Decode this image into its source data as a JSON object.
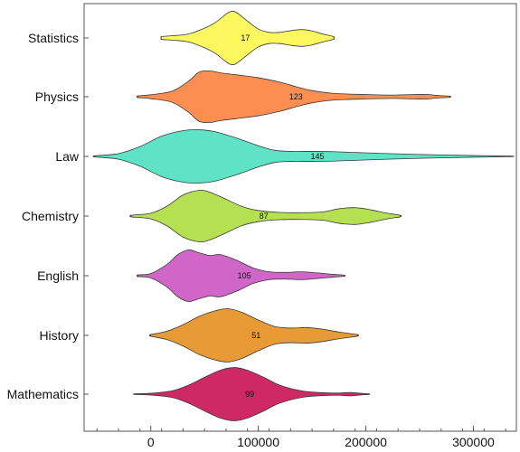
{
  "chart_data": {
    "type": "violin",
    "title": "",
    "xlabel": "",
    "ylabel": "",
    "xlim": [
      -62000,
      340000
    ],
    "x_ticks": [
      {
        "value": 0,
        "label": "0"
      },
      {
        "value": 100000,
        "label": "100000"
      },
      {
        "value": 200000,
        "label": "200000"
      },
      {
        "value": 300000,
        "label": "300000"
      }
    ],
    "grid": false,
    "categories": [
      "Statistics",
      "Physics",
      "Law",
      "Chemistry",
      "English",
      "History",
      "Mathematics"
    ],
    "series": [
      {
        "category": "Statistics",
        "count_label": "17",
        "color": "#fbf85f",
        "range": [
          10000,
          170000
        ],
        "label_x": 88000,
        "density": [
          [
            10000,
            0.05
          ],
          [
            20000,
            0.08
          ],
          [
            35000,
            0.14
          ],
          [
            50000,
            0.35
          ],
          [
            60000,
            0.55
          ],
          [
            70000,
            0.85
          ],
          [
            75000,
            0.95
          ],
          [
            80000,
            0.9
          ],
          [
            90000,
            0.6
          ],
          [
            100000,
            0.32
          ],
          [
            110000,
            0.2
          ],
          [
            120000,
            0.2
          ],
          [
            130000,
            0.26
          ],
          [
            140000,
            0.3
          ],
          [
            150000,
            0.25
          ],
          [
            160000,
            0.14
          ],
          [
            170000,
            0.05
          ]
        ]
      },
      {
        "category": "Physics",
        "count_label": "123",
        "color": "#fc8e52",
        "range": [
          -12000,
          278000
        ],
        "label_x": 135000,
        "density": [
          [
            -12000,
            0.03
          ],
          [
            0,
            0.07
          ],
          [
            20000,
            0.2
          ],
          [
            35000,
            0.55
          ],
          [
            45000,
            0.88
          ],
          [
            55000,
            0.92
          ],
          [
            65000,
            0.85
          ],
          [
            80000,
            0.78
          ],
          [
            100000,
            0.68
          ],
          [
            120000,
            0.52
          ],
          [
            135000,
            0.36
          ],
          [
            150000,
            0.22
          ],
          [
            170000,
            0.12
          ],
          [
            200000,
            0.08
          ],
          [
            225000,
            0.06
          ],
          [
            245000,
            0.08
          ],
          [
            258000,
            0.08
          ],
          [
            265000,
            0.05
          ],
          [
            278000,
            0.02
          ]
        ]
      },
      {
        "category": "Law",
        "count_label": "145",
        "color": "#5fe3c6",
        "range": [
          -52000,
          335000
        ],
        "label_x": 155000,
        "density": [
          [
            -52000,
            0.02
          ],
          [
            -30000,
            0.1
          ],
          [
            -10000,
            0.35
          ],
          [
            10000,
            0.72
          ],
          [
            30000,
            0.92
          ],
          [
            45000,
            0.95
          ],
          [
            60000,
            0.88
          ],
          [
            80000,
            0.65
          ],
          [
            100000,
            0.38
          ],
          [
            115000,
            0.22
          ],
          [
            130000,
            0.18
          ],
          [
            150000,
            0.18
          ],
          [
            170000,
            0.17
          ],
          [
            190000,
            0.14
          ],
          [
            220000,
            0.1
          ],
          [
            260000,
            0.06
          ],
          [
            300000,
            0.03
          ],
          [
            335000,
            0.01
          ]
        ]
      },
      {
        "category": "Chemistry",
        "count_label": "87",
        "color": "#b5e052",
        "range": [
          -18000,
          232000
        ],
        "label_x": 105000,
        "density": [
          [
            -18000,
            0.03
          ],
          [
            0,
            0.1
          ],
          [
            15000,
            0.35
          ],
          [
            30000,
            0.75
          ],
          [
            45000,
            0.92
          ],
          [
            55000,
            0.85
          ],
          [
            70000,
            0.6
          ],
          [
            85000,
            0.34
          ],
          [
            100000,
            0.2
          ],
          [
            120000,
            0.13
          ],
          [
            140000,
            0.12
          ],
          [
            160000,
            0.15
          ],
          [
            175000,
            0.26
          ],
          [
            190000,
            0.3
          ],
          [
            205000,
            0.22
          ],
          [
            220000,
            0.1
          ],
          [
            232000,
            0.03
          ]
        ]
      },
      {
        "category": "English",
        "count_label": "105",
        "color": "#cf66c8",
        "range": [
          -12000,
          180000
        ],
        "label_x": 87000,
        "density": [
          [
            -12000,
            0.03
          ],
          [
            0,
            0.08
          ],
          [
            15000,
            0.4
          ],
          [
            25000,
            0.75
          ],
          [
            35000,
            0.92
          ],
          [
            45000,
            0.82
          ],
          [
            55000,
            0.72
          ],
          [
            65000,
            0.75
          ],
          [
            80000,
            0.55
          ],
          [
            95000,
            0.28
          ],
          [
            110000,
            0.14
          ],
          [
            125000,
            0.12
          ],
          [
            140000,
            0.14
          ],
          [
            155000,
            0.1
          ],
          [
            170000,
            0.05
          ],
          [
            180000,
            0.02
          ]
        ]
      },
      {
        "category": "History",
        "count_label": "51",
        "color": "#e89b35",
        "range": [
          0,
          192000
        ],
        "label_x": 98000,
        "density": [
          [
            0,
            0.03
          ],
          [
            15000,
            0.15
          ],
          [
            30000,
            0.38
          ],
          [
            45000,
            0.68
          ],
          [
            60000,
            0.88
          ],
          [
            72000,
            0.95
          ],
          [
            85000,
            0.82
          ],
          [
            100000,
            0.55
          ],
          [
            115000,
            0.32
          ],
          [
            130000,
            0.26
          ],
          [
            145000,
            0.28
          ],
          [
            160000,
            0.22
          ],
          [
            175000,
            0.12
          ],
          [
            192000,
            0.03
          ]
        ]
      },
      {
        "category": "Mathematics",
        "count_label": "99",
        "color": "#cf2965",
        "range": [
          -15000,
          203000
        ],
        "label_x": 92000,
        "density": [
          [
            -15000,
            0.01
          ],
          [
            0,
            0.03
          ],
          [
            20000,
            0.12
          ],
          [
            35000,
            0.32
          ],
          [
            50000,
            0.6
          ],
          [
            65000,
            0.86
          ],
          [
            78000,
            0.95
          ],
          [
            90000,
            0.85
          ],
          [
            105000,
            0.6
          ],
          [
            120000,
            0.32
          ],
          [
            140000,
            0.12
          ],
          [
            160000,
            0.05
          ],
          [
            175000,
            0.04
          ],
          [
            185000,
            0.06
          ],
          [
            195000,
            0.03
          ],
          [
            203000,
            0.01
          ]
        ]
      }
    ]
  }
}
